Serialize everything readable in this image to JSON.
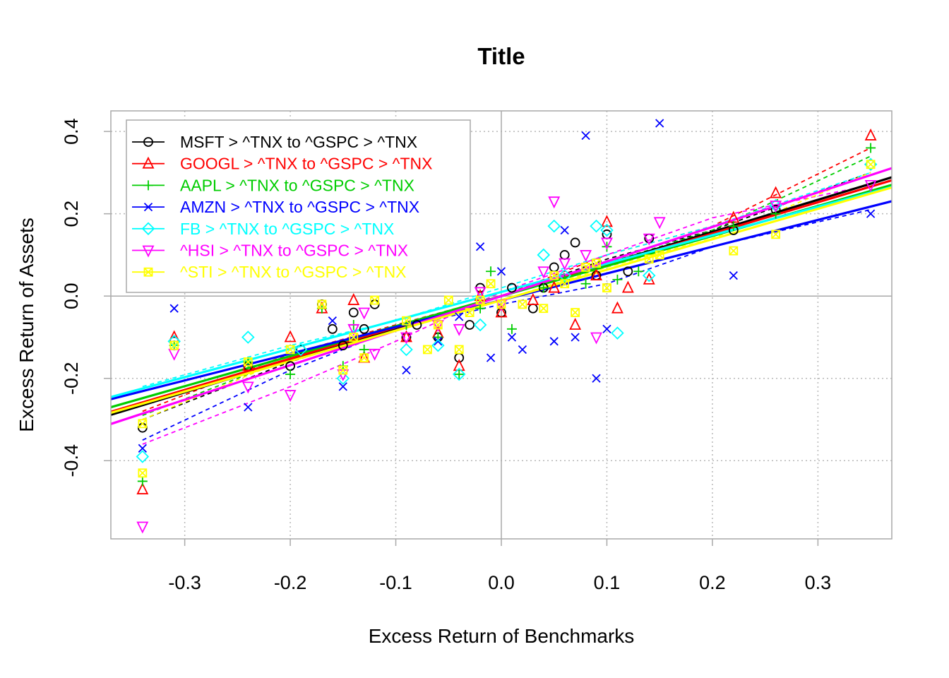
{
  "chart_data": {
    "type": "scatter",
    "title": "Title",
    "xlabel": "Excess Return of Benchmarks",
    "ylabel": "Excess Return of Assets",
    "xlim": [
      -0.37,
      0.37
    ],
    "ylim": [
      -0.59,
      0.45
    ],
    "xticks": [
      -0.3,
      -0.2,
      -0.1,
      0.0,
      0.1,
      0.2,
      0.3
    ],
    "xtick_labels": [
      "-0.3",
      "-0.2",
      "-0.1",
      "0.0",
      "0.1",
      "0.2",
      "0.3"
    ],
    "yticks": [
      -0.4,
      -0.2,
      0.0,
      0.2,
      0.4
    ],
    "ytick_labels": [
      "-0.4",
      "-0.2",
      "0.0",
      "0.2",
      "0.4"
    ],
    "grid": true,
    "legend_position": "top-left",
    "series": [
      {
        "name": "MSFT > ^TNX to ^GSPC > ^TNX",
        "color": "#000000",
        "marker": "circle",
        "points": [
          [
            -0.34,
            -0.32
          ],
          [
            -0.31,
            -0.11
          ],
          [
            -0.24,
            -0.17
          ],
          [
            -0.2,
            -0.17
          ],
          [
            -0.19,
            -0.13
          ],
          [
            -0.17,
            -0.02
          ],
          [
            -0.16,
            -0.08
          ],
          [
            -0.15,
            -0.12
          ],
          [
            -0.14,
            -0.04
          ],
          [
            -0.13,
            -0.08
          ],
          [
            -0.12,
            -0.02
          ],
          [
            -0.09,
            -0.1
          ],
          [
            -0.08,
            -0.07
          ],
          [
            -0.06,
            -0.1
          ],
          [
            -0.04,
            -0.15
          ],
          [
            -0.03,
            -0.07
          ],
          [
            -0.02,
            0.02
          ],
          [
            0.0,
            -0.04
          ],
          [
            0.01,
            0.02
          ],
          [
            0.03,
            -0.03
          ],
          [
            0.04,
            0.02
          ],
          [
            0.05,
            0.07
          ],
          [
            0.06,
            0.1
          ],
          [
            0.07,
            0.13
          ],
          [
            0.09,
            0.05
          ],
          [
            0.1,
            0.15
          ],
          [
            0.12,
            0.06
          ],
          [
            0.14,
            0.14
          ],
          [
            0.22,
            0.16
          ],
          [
            0.26,
            0.21
          ],
          [
            0.35,
            0.32
          ]
        ],
        "fit_slope": 0.78,
        "fit_intercept": 0.0,
        "trend_points": [
          [
            -0.34,
            -0.3
          ],
          [
            -0.2,
            -0.16
          ],
          [
            -0.1,
            -0.08
          ],
          [
            0.0,
            0.0
          ],
          [
            0.1,
            0.09
          ],
          [
            0.2,
            0.16
          ],
          [
            0.35,
            0.3
          ]
        ]
      },
      {
        "name": "GOOGL > ^TNX to ^GSPC > ^TNX",
        "color": "#ff0000",
        "marker": "triangle-up",
        "points": [
          [
            -0.34,
            -0.47
          ],
          [
            -0.31,
            -0.1
          ],
          [
            -0.24,
            -0.17
          ],
          [
            -0.2,
            -0.1
          ],
          [
            -0.17,
            -0.03
          ],
          [
            -0.14,
            -0.01
          ],
          [
            -0.13,
            -0.15
          ],
          [
            -0.09,
            -0.1
          ],
          [
            -0.06,
            -0.09
          ],
          [
            -0.04,
            -0.17
          ],
          [
            -0.02,
            0.0
          ],
          [
            0.0,
            -0.04
          ],
          [
            0.03,
            -0.01
          ],
          [
            0.05,
            0.02
          ],
          [
            0.07,
            -0.07
          ],
          [
            0.09,
            0.05
          ],
          [
            0.1,
            0.18
          ],
          [
            0.11,
            -0.03
          ],
          [
            0.12,
            0.02
          ],
          [
            0.14,
            0.04
          ],
          [
            0.22,
            0.19
          ],
          [
            0.26,
            0.25
          ],
          [
            0.35,
            0.39
          ]
        ],
        "fit_slope": 0.76,
        "fit_intercept": 0.0,
        "trend_points": [
          [
            -0.34,
            -0.28
          ],
          [
            -0.2,
            -0.14
          ],
          [
            -0.1,
            -0.07
          ],
          [
            0.0,
            0.0
          ],
          [
            0.1,
            0.1
          ],
          [
            0.2,
            0.17
          ],
          [
            0.35,
            0.36
          ]
        ]
      },
      {
        "name": "AAPL > ^TNX to ^GSPC > ^TNX",
        "color": "#00cd00",
        "marker": "plus",
        "points": [
          [
            -0.34,
            -0.45
          ],
          [
            -0.31,
            -0.12
          ],
          [
            -0.24,
            -0.16
          ],
          [
            -0.2,
            -0.19
          ],
          [
            -0.17,
            -0.03
          ],
          [
            -0.15,
            -0.17
          ],
          [
            -0.14,
            -0.07
          ],
          [
            -0.13,
            -0.13
          ],
          [
            -0.09,
            -0.07
          ],
          [
            -0.06,
            -0.1
          ],
          [
            -0.04,
            -0.19
          ],
          [
            -0.02,
            -0.03
          ],
          [
            -0.01,
            0.06
          ],
          [
            0.01,
            -0.08
          ],
          [
            0.04,
            0.02
          ],
          [
            0.06,
            0.04
          ],
          [
            0.08,
            0.03
          ],
          [
            0.1,
            0.12
          ],
          [
            0.11,
            0.04
          ],
          [
            0.13,
            0.06
          ],
          [
            0.22,
            0.17
          ],
          [
            0.26,
            0.2
          ],
          [
            0.35,
            0.36
          ]
        ],
        "fit_slope": 0.73,
        "fit_intercept": 0.0,
        "trend_points": [
          [
            -0.34,
            -0.29
          ],
          [
            -0.2,
            -0.15
          ],
          [
            -0.1,
            -0.08
          ],
          [
            0.0,
            0.0
          ],
          [
            0.1,
            0.08
          ],
          [
            0.2,
            0.16
          ],
          [
            0.35,
            0.34
          ]
        ]
      },
      {
        "name": "AMZN > ^TNX to ^GSPC > ^TNX",
        "color": "#0000ff",
        "marker": "x",
        "points": [
          [
            -0.34,
            -0.37
          ],
          [
            -0.31,
            -0.03
          ],
          [
            -0.24,
            -0.27
          ],
          [
            -0.16,
            -0.06
          ],
          [
            -0.15,
            -0.22
          ],
          [
            -0.09,
            -0.18
          ],
          [
            -0.06,
            -0.11
          ],
          [
            -0.04,
            -0.05
          ],
          [
            -0.02,
            0.12
          ],
          [
            -0.01,
            -0.15
          ],
          [
            0.0,
            0.06
          ],
          [
            0.01,
            -0.1
          ],
          [
            0.02,
            -0.13
          ],
          [
            0.05,
            -0.11
          ],
          [
            0.06,
            0.16
          ],
          [
            0.07,
            -0.1
          ],
          [
            0.08,
            0.39
          ],
          [
            0.09,
            -0.2
          ],
          [
            0.1,
            -0.08
          ],
          [
            0.15,
            0.42
          ],
          [
            0.22,
            0.05
          ],
          [
            0.35,
            0.2
          ]
        ],
        "fit_slope": 0.65,
        "fit_intercept": -0.01,
        "trend_points": [
          [
            -0.34,
            -0.35
          ],
          [
            -0.2,
            -0.18
          ],
          [
            -0.1,
            -0.08
          ],
          [
            0.0,
            -0.02
          ],
          [
            0.1,
            0.03
          ],
          [
            0.2,
            0.12
          ],
          [
            0.35,
            0.21
          ]
        ]
      },
      {
        "name": "FB > ^TNX to ^GSPC > ^TNX",
        "color": "#00ffff",
        "marker": "diamond",
        "points": [
          [
            -0.34,
            -0.39
          ],
          [
            -0.31,
            -0.11
          ],
          [
            -0.24,
            -0.1
          ],
          [
            -0.19,
            -0.13
          ],
          [
            -0.15,
            -0.2
          ],
          [
            -0.09,
            -0.13
          ],
          [
            -0.06,
            -0.12
          ],
          [
            -0.04,
            -0.19
          ],
          [
            -0.02,
            -0.07
          ],
          [
            0.04,
            0.1
          ],
          [
            0.05,
            0.17
          ],
          [
            0.06,
            0.05
          ],
          [
            0.09,
            0.17
          ],
          [
            0.1,
            0.16
          ],
          [
            0.11,
            -0.09
          ],
          [
            0.14,
            0.05
          ],
          [
            0.26,
            0.22
          ],
          [
            0.35,
            0.32
          ]
        ],
        "fit_slope": 0.69,
        "fit_intercept": 0.01,
        "trend_points": [
          [
            -0.34,
            -0.22
          ],
          [
            -0.2,
            -0.12
          ],
          [
            -0.1,
            -0.06
          ],
          [
            0.0,
            0.02
          ],
          [
            0.1,
            0.1
          ],
          [
            0.2,
            0.17
          ],
          [
            0.35,
            0.3
          ]
        ]
      },
      {
        "name": "^HSI > ^TNX to ^GSPC > ^TNX",
        "color": "#ff00ff",
        "marker": "triangle-down",
        "points": [
          [
            -0.34,
            -0.56
          ],
          [
            -0.31,
            -0.14
          ],
          [
            -0.24,
            -0.22
          ],
          [
            -0.2,
            -0.24
          ],
          [
            -0.15,
            -0.19
          ],
          [
            -0.14,
            -0.08
          ],
          [
            -0.13,
            -0.04
          ],
          [
            -0.12,
            -0.14
          ],
          [
            -0.09,
            -0.1
          ],
          [
            -0.06,
            -0.07
          ],
          [
            -0.04,
            -0.08
          ],
          [
            -0.02,
            0.01
          ],
          [
            0.0,
            -0.02
          ],
          [
            0.04,
            0.06
          ],
          [
            0.05,
            0.23
          ],
          [
            0.06,
            0.08
          ],
          [
            0.08,
            0.1
          ],
          [
            0.09,
            -0.1
          ],
          [
            0.1,
            0.13
          ],
          [
            0.14,
            0.14
          ],
          [
            0.15,
            0.18
          ],
          [
            0.26,
            0.22
          ],
          [
            0.35,
            0.27
          ]
        ],
        "fit_slope": 0.84,
        "fit_intercept": 0.0,
        "trend_points": [
          [
            -0.34,
            -0.36
          ],
          [
            -0.2,
            -0.22
          ],
          [
            -0.1,
            -0.11
          ],
          [
            0.0,
            0.01
          ],
          [
            0.1,
            0.1
          ],
          [
            0.2,
            0.19
          ],
          [
            0.35,
            0.27
          ]
        ]
      },
      {
        "name": "^STI > ^TNX to ^GSPC > ^TNX",
        "color": "#ffff00",
        "marker": "square-x",
        "points": [
          [
            -0.34,
            -0.43
          ],
          [
            -0.34,
            -0.31
          ],
          [
            -0.31,
            -0.12
          ],
          [
            -0.24,
            -0.16
          ],
          [
            -0.2,
            -0.13
          ],
          [
            -0.17,
            -0.02
          ],
          [
            -0.15,
            -0.18
          ],
          [
            -0.14,
            -0.1
          ],
          [
            -0.13,
            -0.15
          ],
          [
            -0.12,
            -0.01
          ],
          [
            -0.09,
            -0.06
          ],
          [
            -0.07,
            -0.13
          ],
          [
            -0.06,
            -0.07
          ],
          [
            -0.05,
            -0.01
          ],
          [
            -0.04,
            -0.13
          ],
          [
            -0.03,
            -0.04
          ],
          [
            -0.02,
            -0.01
          ],
          [
            -0.01,
            0.03
          ],
          [
            0.0,
            -0.02
          ],
          [
            0.02,
            -0.02
          ],
          [
            0.04,
            -0.03
          ],
          [
            0.05,
            0.05
          ],
          [
            0.06,
            0.03
          ],
          [
            0.07,
            -0.04
          ],
          [
            0.08,
            0.07
          ],
          [
            0.09,
            0.08
          ],
          [
            0.1,
            0.02
          ],
          [
            0.14,
            0.09
          ],
          [
            0.15,
            0.1
          ],
          [
            0.22,
            0.11
          ],
          [
            0.26,
            0.15
          ],
          [
            0.35,
            0.32
          ]
        ],
        "fit_slope": 0.74,
        "fit_intercept": -0.01,
        "trend_points": [
          [
            -0.34,
            -0.3
          ],
          [
            -0.2,
            -0.15
          ],
          [
            -0.1,
            -0.08
          ],
          [
            0.0,
            -0.01
          ],
          [
            0.1,
            0.07
          ],
          [
            0.2,
            0.14
          ],
          [
            0.35,
            0.3
          ]
        ]
      }
    ]
  }
}
